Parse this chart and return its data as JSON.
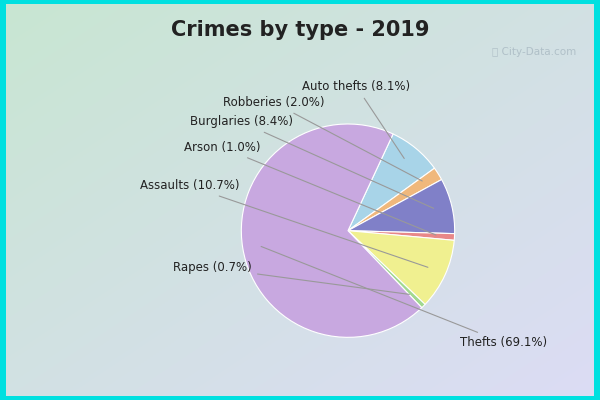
{
  "title": "Crimes by type - 2019",
  "pie_labels": [
    "Auto thefts",
    "Robberies",
    "Burglaries",
    "Arson",
    "Assaults",
    "Rapes",
    "Thefts"
  ],
  "pie_values": [
    8.1,
    2.0,
    8.4,
    1.0,
    10.7,
    0.7,
    69.1
  ],
  "pie_colors": [
    "#a8d4e8",
    "#f0b87c",
    "#8080c8",
    "#e88888",
    "#f0f090",
    "#a0d890",
    "#c8a8e0"
  ],
  "title_fontsize": 15,
  "label_fontsize": 8.5,
  "watermark": "ⓘ City-Data.com",
  "bg_cyan": "#00e0e0",
  "bg_grad_tl": [
    200,
    230,
    210
  ],
  "bg_grad_br": [
    220,
    220,
    245
  ]
}
